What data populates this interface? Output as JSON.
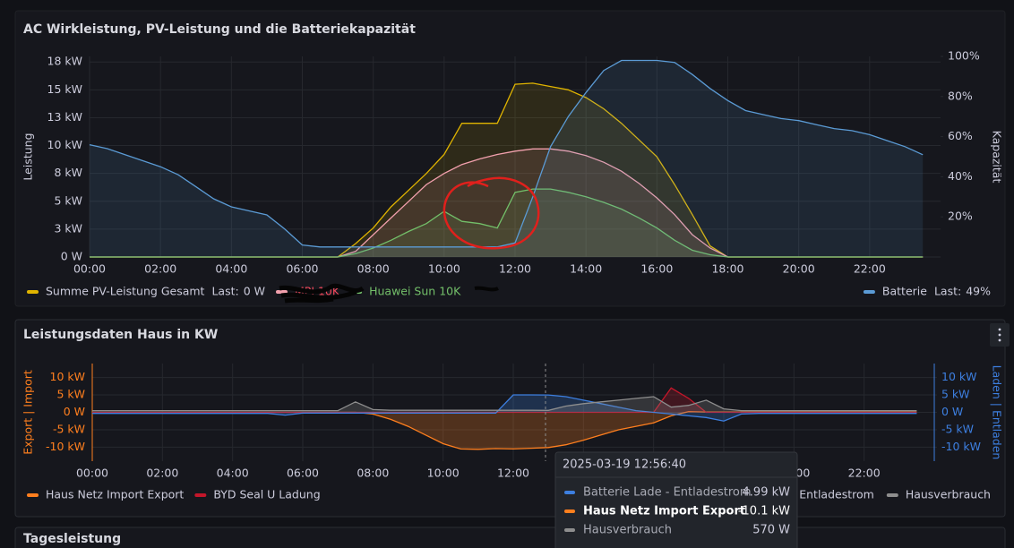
{
  "chart_data": [
    {
      "type": "line",
      "title": "AC Wirkleistung, PV-Leistung und die Batteriekapazität",
      "ylabel": "Leistung",
      "y2label": "Kapazität",
      "legend_stat": "Last:",
      "x": [
        "00:00",
        "00:30",
        "01:00",
        "01:30",
        "02:00",
        "02:30",
        "03:00",
        "03:30",
        "04:00",
        "04:30",
        "05:00",
        "05:30",
        "06:00",
        "06:30",
        "07:00",
        "07:30",
        "08:00",
        "08:30",
        "09:00",
        "09:30",
        "10:00",
        "10:30",
        "11:00",
        "11:30",
        "12:00",
        "12:30",
        "13:00",
        "13:30",
        "14:00",
        "14:30",
        "15:00",
        "15:30",
        "16:00",
        "16:30",
        "17:00",
        "17:30",
        "18:00",
        "18:30",
        "19:00",
        "19:30",
        "20:00",
        "20:30",
        "21:00",
        "21:30",
        "22:00",
        "22:30",
        "23:00",
        "23:30"
      ],
      "xlim": [
        "00:00",
        "24:00"
      ],
      "xticks": [
        "00:00",
        "02:00",
        "04:00",
        "06:00",
        "08:00",
        "10:00",
        "12:00",
        "14:00",
        "16:00",
        "18:00",
        "20:00",
        "22:00"
      ],
      "ylim": [
        0,
        18
      ],
      "yticks": [
        {
          "value": 0,
          "label": "0 W"
        },
        {
          "value": 2.5,
          "label": "3 kW"
        },
        {
          "value": 5,
          "label": "5 kW"
        },
        {
          "value": 7.5,
          "label": "8 kW"
        },
        {
          "value": 10,
          "label": "10 kW"
        },
        {
          "value": 12.5,
          "label": "13 kW"
        },
        {
          "value": 15,
          "label": "15 kW"
        },
        {
          "value": 17.5,
          "label": "18 kW"
        }
      ],
      "y2lim": [
        0,
        100
      ],
      "y2ticks": [
        {
          "value": 20,
          "label": "20%"
        },
        {
          "value": 40,
          "label": "40%"
        },
        {
          "value": 60,
          "label": "60%"
        },
        {
          "value": 80,
          "label": "80%"
        },
        {
          "value": 100,
          "label": "100%"
        }
      ],
      "grid": true,
      "series": [
        {
          "name": "Summe PV-Leistung Gesamt",
          "color": "#e0b400",
          "last": "0 W",
          "values": [
            0,
            0,
            0,
            0,
            0,
            0,
            0,
            0,
            0,
            0,
            0,
            0,
            0,
            0,
            0,
            1.2,
            2.6,
            4.5,
            6,
            7.5,
            9.2,
            12,
            12,
            12,
            15.5,
            15.6,
            15.3,
            15,
            14.3,
            13.3,
            12,
            10.5,
            9,
            6.5,
            3.8,
            1,
            0,
            0,
            0,
            0,
            0,
            0,
            0,
            0,
            0,
            0,
            0,
            0
          ]
        },
        {
          "name": "MPI 10K",
          "color": "#f2a0ad",
          "label_color": "#f2495c",
          "values": [
            0,
            0,
            0,
            0,
            0,
            0,
            0,
            0,
            0,
            0,
            0,
            0,
            0,
            0,
            0,
            0.5,
            2,
            3.5,
            5,
            6.5,
            7.5,
            8.3,
            8.8,
            9.2,
            9.5,
            9.7,
            9.7,
            9.5,
            9.1,
            8.5,
            7.7,
            6.6,
            5.3,
            3.8,
            2,
            0.8,
            0,
            0,
            0,
            0,
            0,
            0,
            0,
            0,
            0,
            0,
            0,
            0
          ]
        },
        {
          "name": "Huawei Sun 10K",
          "color": "#73bf69",
          "label_color": "#73bf69",
          "values": [
            0,
            0,
            0,
            0,
            0,
            0,
            0,
            0,
            0,
            0,
            0,
            0,
            0,
            0,
            0,
            0.3,
            0.8,
            1.5,
            2.3,
            3,
            4.1,
            3.2,
            3,
            2.6,
            5.8,
            6.1,
            6.1,
            5.8,
            5.4,
            4.9,
            4.3,
            3.5,
            2.6,
            1.5,
            0.6,
            0.2,
            0,
            0,
            0,
            0,
            0,
            0,
            0,
            0,
            0,
            0,
            0,
            0
          ]
        },
        {
          "name": "Batterie",
          "color": "#5b9bd5",
          "axis": "y2",
          "last": "49%",
          "values": [
            56,
            54,
            51,
            48,
            45,
            41,
            35,
            29,
            25,
            23,
            21,
            14,
            6,
            5,
            5,
            5,
            5,
            5,
            5,
            5,
            5,
            5,
            5,
            5,
            7,
            30,
            55,
            70,
            82,
            93,
            98,
            98,
            98,
            97,
            91,
            84,
            78,
            73,
            71,
            69,
            68,
            66,
            64,
            63,
            61,
            58,
            55,
            51
          ]
        }
      ]
    },
    {
      "type": "line",
      "title": "Leistungsdaten Haus in KW",
      "ylabel": "Export | Import",
      "y2label": "Laden | Entladen",
      "ycolor": "#ff7f1e",
      "y2color": "#3d7fe0",
      "x": [
        "00:00",
        "00:30",
        "01:00",
        "01:30",
        "02:00",
        "02:30",
        "03:00",
        "03:30",
        "04:00",
        "04:30",
        "05:00",
        "05:30",
        "06:00",
        "06:30",
        "07:00",
        "07:30",
        "08:00",
        "08:30",
        "09:00",
        "09:30",
        "10:00",
        "10:30",
        "11:00",
        "11:30",
        "12:00",
        "12:30",
        "13:00",
        "13:30",
        "14:00",
        "14:30",
        "15:00",
        "15:30",
        "16:00",
        "16:30",
        "17:00",
        "17:30",
        "18:00",
        "18:30",
        "19:00",
        "19:30",
        "20:00",
        "20:30",
        "21:00",
        "21:30",
        "22:00",
        "22:30",
        "23:00",
        "23:30"
      ],
      "xlim": [
        "00:00",
        "24:00"
      ],
      "xticks": [
        "00:00",
        "02:00",
        "04:00",
        "06:00",
        "08:00",
        "10:00",
        "12:00",
        "14:00",
        "16:00",
        "18:00",
        "20:00",
        "22:00"
      ],
      "ylim": [
        -14,
        14
      ],
      "yticks": [
        {
          "value": 10,
          "label": "10 kW"
        },
        {
          "value": 5,
          "label": "5 kW"
        },
        {
          "value": 0,
          "label": "0 W"
        },
        {
          "value": -5,
          "label": "-5 kW"
        },
        {
          "value": -10,
          "label": "-10 kW"
        }
      ],
      "y2lim": [
        -14,
        14
      ],
      "y2ticks": [
        {
          "value": 10,
          "label": "10 kW"
        },
        {
          "value": 5,
          "label": "5 kW"
        },
        {
          "value": 0,
          "label": "0 W"
        },
        {
          "value": -5,
          "label": "-5 kW"
        },
        {
          "value": -10,
          "label": "-10 kW"
        }
      ],
      "grid": true,
      "series": [
        {
          "name": "Haus Netz Import Export",
          "color": "#ff7f1e",
          "values": [
            0,
            0,
            0,
            0,
            0,
            0,
            0,
            0,
            0,
            0,
            0,
            0,
            0,
            0,
            0,
            0,
            -0.5,
            -2,
            -4,
            -6.5,
            -9,
            -10.5,
            -10.6,
            -10.4,
            -10.5,
            -10.3,
            -10.1,
            -9.3,
            -8,
            -6.5,
            -5,
            -4,
            -3,
            -1,
            0.2,
            0.1,
            0.1,
            0.1,
            0.1,
            0.1,
            0.1,
            0.1,
            0.1,
            0.1,
            0.1,
            0.1,
            0.1,
            0.1
          ]
        },
        {
          "name": "BYD Seal U Ladung",
          "color": "#c4162a",
          "values": [
            0,
            0,
            0,
            0,
            0,
            0,
            0,
            0,
            0,
            0,
            0,
            0,
            0,
            0,
            0,
            0,
            0,
            0,
            0,
            0,
            0,
            0,
            0,
            0,
            0,
            0,
            0,
            0,
            0,
            0,
            0,
            0,
            0,
            7,
            4,
            0,
            0,
            0,
            0,
            0,
            0,
            0,
            0,
            0,
            0,
            0,
            0,
            0
          ]
        },
        {
          "name": "Batterie Lade - Entladestrom",
          "color": "#3d7fe0",
          "axis": "y2",
          "values": [
            -0.3,
            -0.3,
            -0.3,
            -0.3,
            -0.3,
            -0.3,
            -0.3,
            -0.3,
            -0.3,
            -0.3,
            -0.3,
            -0.8,
            -0.2,
            -0.2,
            -0.2,
            -0.2,
            -0.2,
            -0.2,
            -0.2,
            -0.2,
            -0.2,
            -0.2,
            -0.2,
            -0.2,
            5,
            5,
            4.99,
            4.5,
            3.5,
            2.5,
            1.5,
            0.5,
            0,
            -0.5,
            -1,
            -1.5,
            -2.5,
            -0.5,
            -0.3,
            -0.3,
            -0.3,
            -0.3,
            -0.3,
            -0.3,
            -0.3,
            -0.3,
            -0.3,
            -0.3
          ]
        },
        {
          "name": "Hausverbrauch",
          "color": "#8e8e8e",
          "axis": "y2",
          "values": [
            0.5,
            0.5,
            0.5,
            0.5,
            0.5,
            0.5,
            0.5,
            0.5,
            0.5,
            0.5,
            0.5,
            0.5,
            0.5,
            0.5,
            0.5,
            3,
            0.8,
            0.6,
            0.6,
            0.6,
            0.6,
            0.6,
            0.6,
            0.6,
            0.6,
            0.6,
            0.57,
            1.8,
            2.5,
            3,
            3.5,
            4,
            4.5,
            1.5,
            2,
            3.5,
            1,
            0.5,
            0.5,
            0.5,
            0.5,
            0.5,
            0.5,
            0.5,
            0.5,
            0.5,
            0.5,
            0.5
          ]
        }
      ]
    }
  ],
  "tooltip": {
    "time": "2025-03-19 12:56:40",
    "rows": [
      {
        "name": "Batterie Lade - Entladestrom",
        "value": "4.99 kW",
        "color": "#3d7fe0"
      },
      {
        "name": "Haus Netz Import Export",
        "value": "-10.1 kW",
        "color": "#ff7f1e"
      },
      {
        "name": "Hausverbrauch",
        "value": "570 W",
        "color": "#8e8e8e"
      }
    ]
  },
  "panel3": {
    "title": "Tagesleistung"
  }
}
